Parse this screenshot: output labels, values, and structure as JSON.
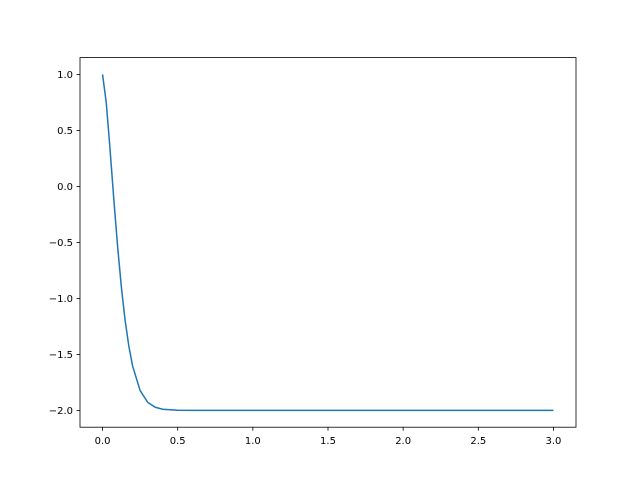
{
  "chart_data": {
    "type": "line",
    "title": "",
    "xlabel": "",
    "ylabel": "",
    "xlim": [
      -0.15,
      3.15
    ],
    "ylim": [
      -2.15,
      1.15
    ],
    "grid": false,
    "x_ticks": [
      0.0,
      0.5,
      1.0,
      1.5,
      2.0,
      2.5,
      3.0
    ],
    "x_tick_labels": [
      "0.0",
      "0.5",
      "1.0",
      "1.5",
      "2.0",
      "2.5",
      "3.0"
    ],
    "y_ticks": [
      1.0,
      0.5,
      0.0,
      -0.5,
      -1.0,
      -1.5,
      -2.0
    ],
    "y_tick_labels": [
      "1.0",
      "0.5",
      "0.0",
      "−0.5",
      "−1.0",
      "−1.5",
      "−2.0"
    ],
    "series": [
      {
        "color": "#1f77b4",
        "x": [
          0,
          0.025,
          0.05,
          0.075,
          0.1,
          0.125,
          0.15,
          0.175,
          0.2,
          0.25,
          0.3,
          0.35,
          0.4,
          0.5,
          0.6,
          1.0,
          1.5,
          2.0,
          2.5,
          3.0
        ],
        "y": [
          1.0,
          0.744,
          0.329,
          -0.116,
          -0.534,
          -0.896,
          -1.194,
          -1.427,
          -1.604,
          -1.823,
          -1.927,
          -1.972,
          -1.99,
          -1.999,
          -2.0,
          -2.0,
          -2.0,
          -2.0,
          -2.0,
          -2.0
        ]
      }
    ]
  }
}
